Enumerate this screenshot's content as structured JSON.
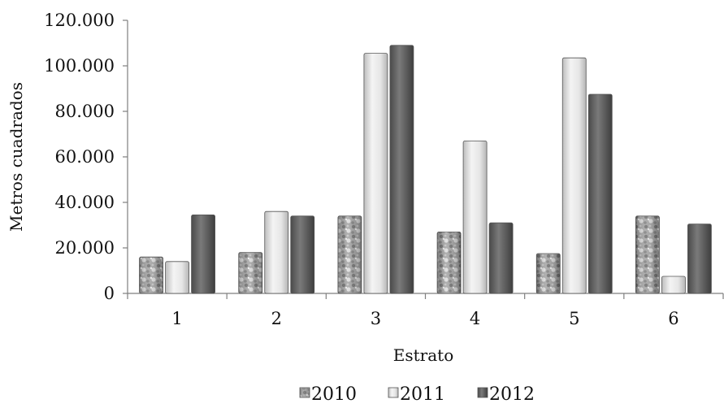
{
  "chart_data": {
    "type": "bar",
    "categories": [
      "1",
      "2",
      "3",
      "4",
      "5",
      "6"
    ],
    "series": [
      {
        "name": "2010",
        "values": [
          16000,
          18000,
          34000,
          27000,
          17500,
          34000
        ],
        "color": "#8f8f8f",
        "pattern": "textured"
      },
      {
        "name": "2011",
        "values": [
          14000,
          36000,
          105500,
          67000,
          103500,
          7500
        ],
        "color": "#e2e2e2",
        "pattern": "light"
      },
      {
        "name": "2012",
        "values": [
          34500,
          34000,
          109000,
          31000,
          87500,
          30500
        ],
        "color": "#6a6a6a",
        "pattern": "dark"
      }
    ],
    "title": "",
    "xlabel": "Estrato",
    "ylabel": "Metros cuadrados",
    "ylim": [
      0,
      120000
    ],
    "y_ticks": [
      "0",
      "20.000",
      "40.000",
      "60.000",
      "80.000",
      "100.000",
      "120.000"
    ],
    "legend_position": "bottom",
    "grid": false
  }
}
